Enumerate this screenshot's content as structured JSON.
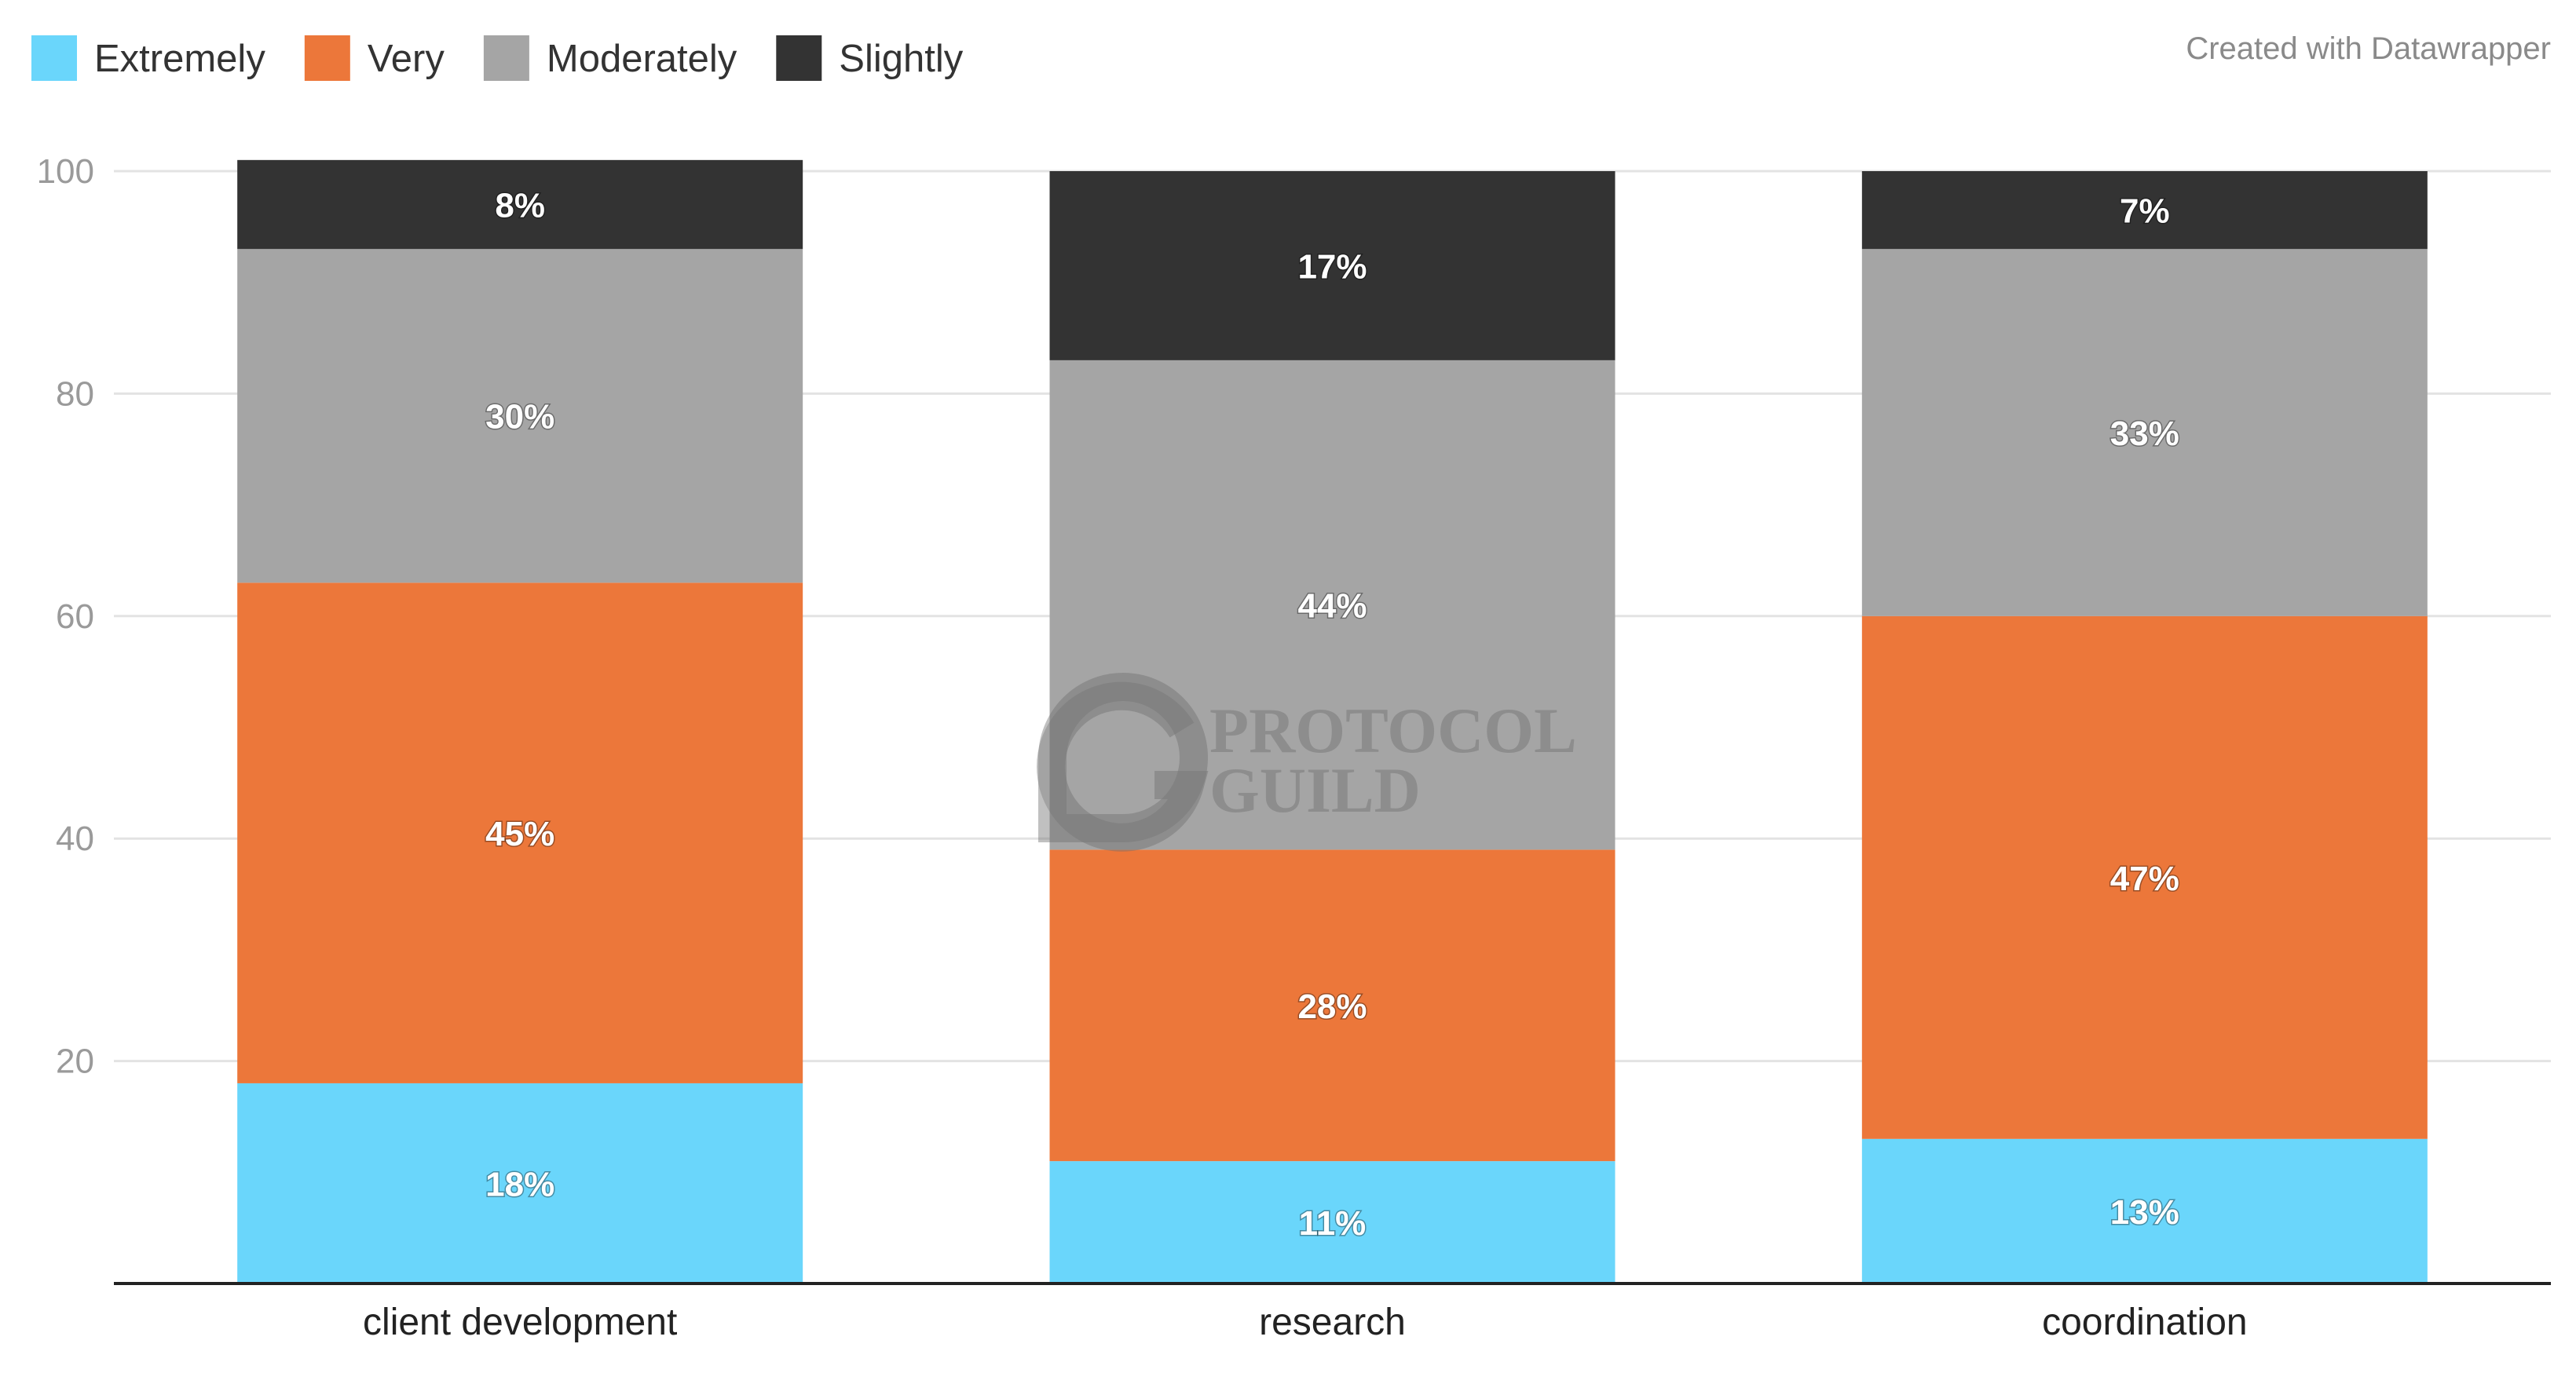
{
  "chart_data": {
    "type": "bar",
    "stacked": true,
    "categories": [
      "client development",
      "research",
      "coordination"
    ],
    "series": [
      {
        "name": "Extremely",
        "color": "#6ad6fb",
        "values": [
          18,
          11,
          13
        ],
        "labels": [
          "18%",
          "11%",
          "13%"
        ]
      },
      {
        "name": "Very",
        "color": "#ec773a",
        "values": [
          45,
          28,
          47
        ],
        "labels": [
          "45%",
          "28%",
          "47%"
        ]
      },
      {
        "name": "Moderately",
        "color": "#a5a5a5",
        "values": [
          30,
          44,
          33
        ],
        "labels": [
          "30%",
          "44%",
          "33%"
        ]
      },
      {
        "name": "Slightly",
        "color": "#333333",
        "values": [
          8,
          17,
          7
        ],
        "labels": [
          "8%",
          "17%",
          "7%"
        ]
      }
    ],
    "yticks": [
      20,
      40,
      60,
      80,
      100
    ],
    "ylim": [
      0,
      100
    ],
    "legend_position": "top-left",
    "grid": true,
    "title": "",
    "xlabel": "",
    "ylabel": ""
  },
  "credit": "Created with Datawrapper",
  "watermark": {
    "line1": "PROTOCOL",
    "line2": "GUILD"
  }
}
